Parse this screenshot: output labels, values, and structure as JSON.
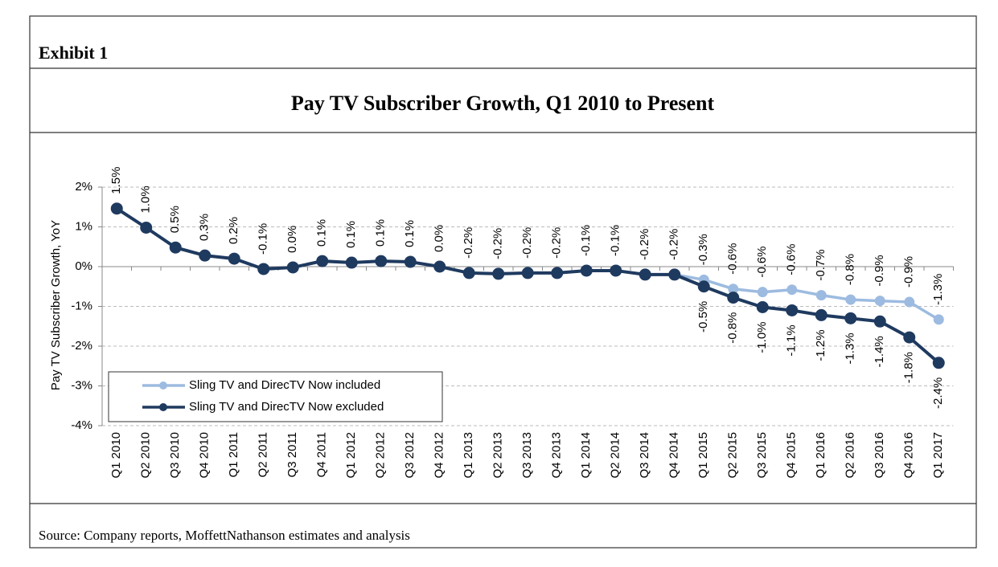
{
  "exhibit": "Exhibit 1",
  "source": "Source: Company reports, MoffettNathanson estimates and analysis",
  "chart_data": {
    "type": "line",
    "title": "Pay TV Subscriber Growth, Q1 2010 to Present",
    "y_label": "Pay TV Subscriber Growth, YoY",
    "categories": [
      "Q1 2010",
      "Q2 2010",
      "Q3 2010",
      "Q4 2010",
      "Q1 2011",
      "Q2 2011",
      "Q3 2011",
      "Q4 2011",
      "Q1 2012",
      "Q2 2012",
      "Q3 2012",
      "Q4 2012",
      "Q1 2013",
      "Q2 2013",
      "Q3 2013",
      "Q4 2013",
      "Q1 2014",
      "Q2 2014",
      "Q3 2014",
      "Q4 2014",
      "Q1 2015",
      "Q2 2015",
      "Q3 2015",
      "Q4 2015",
      "Q1 2016",
      "Q2 2016",
      "Q3 2016",
      "Q4 2016",
      "Q1 2017"
    ],
    "ylim": [
      -4,
      2
    ],
    "yticks": [
      {
        "value": 2,
        "label": "2%"
      },
      {
        "value": 1,
        "label": "1%"
      },
      {
        "value": 0,
        "label": "0%"
      },
      {
        "value": -1,
        "label": "-1%"
      },
      {
        "value": -2,
        "label": "-2%"
      },
      {
        "value": -3,
        "label": "-3%"
      },
      {
        "value": -4,
        "label": "-4%"
      }
    ],
    "grid": true,
    "legend": "lower-left",
    "series": [
      {
        "name": "Sling TV and DirecTV Now included",
        "color": "#9dbbe0",
        "values": [
          1.46,
          0.98,
          0.48,
          0.28,
          0.2,
          -0.06,
          -0.02,
          0.14,
          0.1,
          0.14,
          0.12,
          0.0,
          -0.16,
          -0.18,
          -0.16,
          -0.16,
          -0.1,
          -0.1,
          -0.2,
          -0.2,
          -0.33,
          -0.56,
          -0.64,
          -0.58,
          -0.72,
          -0.83,
          -0.86,
          -0.89,
          -1.33
        ],
        "value_labels": [
          "1.5%",
          "1.0%",
          "0.5%",
          "0.3%",
          "0.2%",
          "-0.1%",
          "0.0%",
          "0.1%",
          "0.1%",
          "0.1%",
          "0.1%",
          "0.0%",
          "-0.2%",
          "-0.2%",
          "-0.2%",
          "-0.2%",
          "-0.1%",
          "-0.1%",
          "-0.2%",
          "-0.2%",
          "-0.3%",
          "-0.6%",
          "-0.6%",
          "-0.6%",
          "-0.7%",
          "-0.8%",
          "-0.9%",
          "-0.9%",
          "-1.3%"
        ]
      },
      {
        "name": "Sling TV and DirecTV Now excluded",
        "color": "#1f3a5f",
        "values": [
          1.46,
          0.98,
          0.48,
          0.28,
          0.2,
          -0.06,
          -0.02,
          0.14,
          0.1,
          0.14,
          0.12,
          0.0,
          -0.16,
          -0.18,
          -0.16,
          -0.16,
          -0.1,
          -0.1,
          -0.2,
          -0.2,
          -0.5,
          -0.78,
          -1.02,
          -1.1,
          -1.22,
          -1.3,
          -1.38,
          -1.78,
          -2.42
        ],
        "value_labels": [
          null,
          null,
          null,
          null,
          null,
          null,
          null,
          null,
          null,
          null,
          null,
          null,
          null,
          null,
          null,
          null,
          null,
          null,
          null,
          null,
          "-0.5%",
          "-0.8%",
          "-1.0%",
          "-1.1%",
          "-1.2%",
          "-1.3%",
          "-1.4%",
          "-1.8%",
          "-2.4%"
        ]
      }
    ]
  }
}
